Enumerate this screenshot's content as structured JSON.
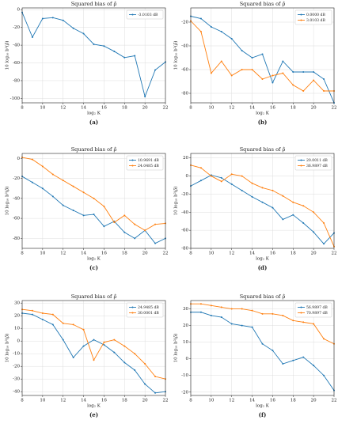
{
  "chart_data": [
    {
      "type": "line",
      "title": "Squared bias of ρ̂",
      "x_label": "log₂ K",
      "y_label": "10 log₁₀ b²(ρ̂)",
      "caption": "(a)",
      "x": [
        8,
        9,
        10,
        11,
        12,
        13,
        14,
        15,
        16,
        17,
        18,
        19,
        20,
        21,
        22
      ],
      "xlim": [
        8,
        22
      ],
      "xticks": [
        8,
        10,
        12,
        14,
        16,
        18,
        20,
        22
      ],
      "ylim": [
        -105,
        2
      ],
      "yticks": [
        0,
        -20,
        -40,
        -60,
        -80,
        -100
      ],
      "grid": true,
      "legend": "upper right",
      "series": [
        {
          "name": "-3.0103 dB",
          "color": "#1f77b4",
          "values": [
            -3,
            -31,
            -10,
            -9,
            -12,
            -21,
            -27,
            -39,
            -41,
            -47,
            -54,
            -52,
            -98,
            -68,
            -59
          ]
        }
      ]
    },
    {
      "type": "line",
      "title": "Squared bias of ρ̂",
      "x_label": "log₂ K",
      "y_label": "10 log₁₀ b²(ρ̂)",
      "caption": "(b)",
      "x": [
        8,
        9,
        10,
        11,
        12,
        13,
        14,
        15,
        16,
        17,
        18,
        19,
        20,
        21,
        22
      ],
      "xlim": [
        8,
        22
      ],
      "xticks": [
        8,
        10,
        12,
        14,
        16,
        18,
        20,
        22
      ],
      "ylim": [
        -88,
        -8
      ],
      "yticks": [
        -20,
        -40,
        -60,
        -80
      ],
      "grid": true,
      "legend": "upper right",
      "series": [
        {
          "name": "0.0000 dB",
          "color": "#1f77b4",
          "values": [
            -15,
            -17,
            -24,
            -28,
            -34,
            -44,
            -50,
            -47,
            -71,
            -53,
            -62,
            -62,
            -62,
            -68,
            -88
          ]
        },
        {
          "name": "3.0103 dB",
          "color": "#ff7f0e",
          "values": [
            -19,
            -28,
            -63,
            -53,
            -65,
            -60,
            -60,
            -68,
            -65,
            -63,
            -73,
            -78,
            -69,
            -78,
            -78
          ]
        }
      ]
    },
    {
      "type": "line",
      "title": "Squared bias of ρ̂",
      "x_label": "log₂ K",
      "y_label": "10 log₁₀ b²(ρ̂)",
      "caption": "(c)",
      "x": [
        8,
        9,
        10,
        11,
        12,
        13,
        14,
        15,
        16,
        17,
        18,
        19,
        20,
        21,
        22
      ],
      "xlim": [
        8,
        22
      ],
      "xticks": [
        8,
        10,
        12,
        14,
        16,
        18,
        20,
        22
      ],
      "ylim": [
        -90,
        5
      ],
      "yticks": [
        0,
        -20,
        -40,
        -60,
        -80
      ],
      "grid": true,
      "legend": "upper right",
      "series": [
        {
          "name": "10.9691 dB",
          "color": "#1f77b4",
          "values": [
            -18,
            -24,
            -30,
            -38,
            -47,
            -52,
            -57,
            -56,
            -68,
            -63,
            -74,
            -80,
            -72,
            -85,
            -80
          ]
        },
        {
          "name": "24.0485 dB",
          "color": "#ff7f0e",
          "values": [
            1,
            -1,
            -8,
            -16,
            -22,
            -28,
            -34,
            -40,
            -48,
            -64,
            -57,
            -66,
            -72,
            -66,
            -65
          ]
        }
      ]
    },
    {
      "type": "line",
      "title": "Squared bias of ρ̂",
      "x_label": "log₂ K",
      "y_label": "10 log₁₀ b²(ρ̂)",
      "caption": "(d)",
      "x": [
        8,
        9,
        10,
        11,
        12,
        13,
        14,
        15,
        16,
        17,
        18,
        19,
        20,
        21,
        22
      ],
      "xlim": [
        8,
        22
      ],
      "xticks": [
        8,
        10,
        12,
        14,
        16,
        18,
        20,
        22
      ],
      "ylim": [
        -80,
        25
      ],
      "yticks": [
        20,
        0,
        -20,
        -40,
        -60,
        -80
      ],
      "grid": true,
      "legend": "upper right",
      "series": [
        {
          "name": "20.0011 dB",
          "color": "#1f77b4",
          "values": [
            -11,
            -5,
            1,
            -2,
            -9,
            -16,
            -23,
            -29,
            -35,
            -48,
            -43,
            -52,
            -62,
            -75,
            -63
          ]
        },
        {
          "name": "36.9897 dB",
          "color": "#ff7f0e",
          "values": [
            12,
            9,
            0,
            -6,
            2,
            0,
            -8,
            -13,
            -16,
            -22,
            -29,
            -33,
            -40,
            -52,
            -78
          ]
        }
      ]
    },
    {
      "type": "line",
      "title": "Squared bias of ρ̂",
      "x_label": "log₂ K",
      "y_label": "10 log₁₀ b²(ρ̂)",
      "caption": "(e)",
      "x": [
        8,
        9,
        10,
        11,
        12,
        13,
        14,
        15,
        16,
        17,
        18,
        19,
        20,
        21,
        22
      ],
      "xlim": [
        8,
        22
      ],
      "xticks": [
        8,
        10,
        12,
        14,
        16,
        18,
        20,
        22
      ],
      "ylim": [
        -43,
        32
      ],
      "yticks": [
        30,
        20,
        10,
        0,
        -10,
        -20,
        -30,
        -40
      ],
      "grid": true,
      "legend": "upper right",
      "series": [
        {
          "name": "24.9485 dB",
          "color": "#1f77b4",
          "values": [
            22,
            21,
            17,
            13,
            1,
            -13,
            -4,
            1,
            -3,
            -9,
            -17,
            -23,
            -34,
            -41,
            -40
          ]
        },
        {
          "name": "30.0001 dB",
          "color": "#ff7f0e",
          "values": [
            25,
            24,
            22,
            21,
            14,
            13,
            9,
            -15,
            -1,
            1,
            -4,
            -10,
            -18,
            -28,
            -30
          ]
        }
      ]
    },
    {
      "type": "line",
      "title": "Squared bias of ρ̂",
      "x_label": "log₂ K",
      "y_label": "10 log₁₀ b²(ρ̂)",
      "caption": "(f)",
      "x": [
        8,
        9,
        10,
        11,
        12,
        13,
        14,
        15,
        16,
        17,
        18,
        19,
        20,
        21,
        22
      ],
      "xlim": [
        8,
        22
      ],
      "xticks": [
        8,
        10,
        12,
        14,
        16,
        18,
        20,
        22
      ],
      "ylim": [
        -22,
        35
      ],
      "yticks": [
        30,
        20,
        10,
        0,
        -10,
        -20
      ],
      "grid": true,
      "legend": "upper right",
      "series": [
        {
          "name": "56.9897 dB",
          "color": "#1f77b4",
          "values": [
            28,
            28,
            26,
            25,
            21,
            20,
            19,
            9,
            5,
            -3,
            -1,
            1,
            -4,
            -10,
            -19
          ]
        },
        {
          "name": "70.9897 dB",
          "color": "#ff7f0e",
          "values": [
            33,
            33,
            32,
            31,
            30,
            30,
            29,
            27,
            27,
            26,
            23,
            22,
            21,
            12,
            9
          ]
        }
      ]
    }
  ]
}
